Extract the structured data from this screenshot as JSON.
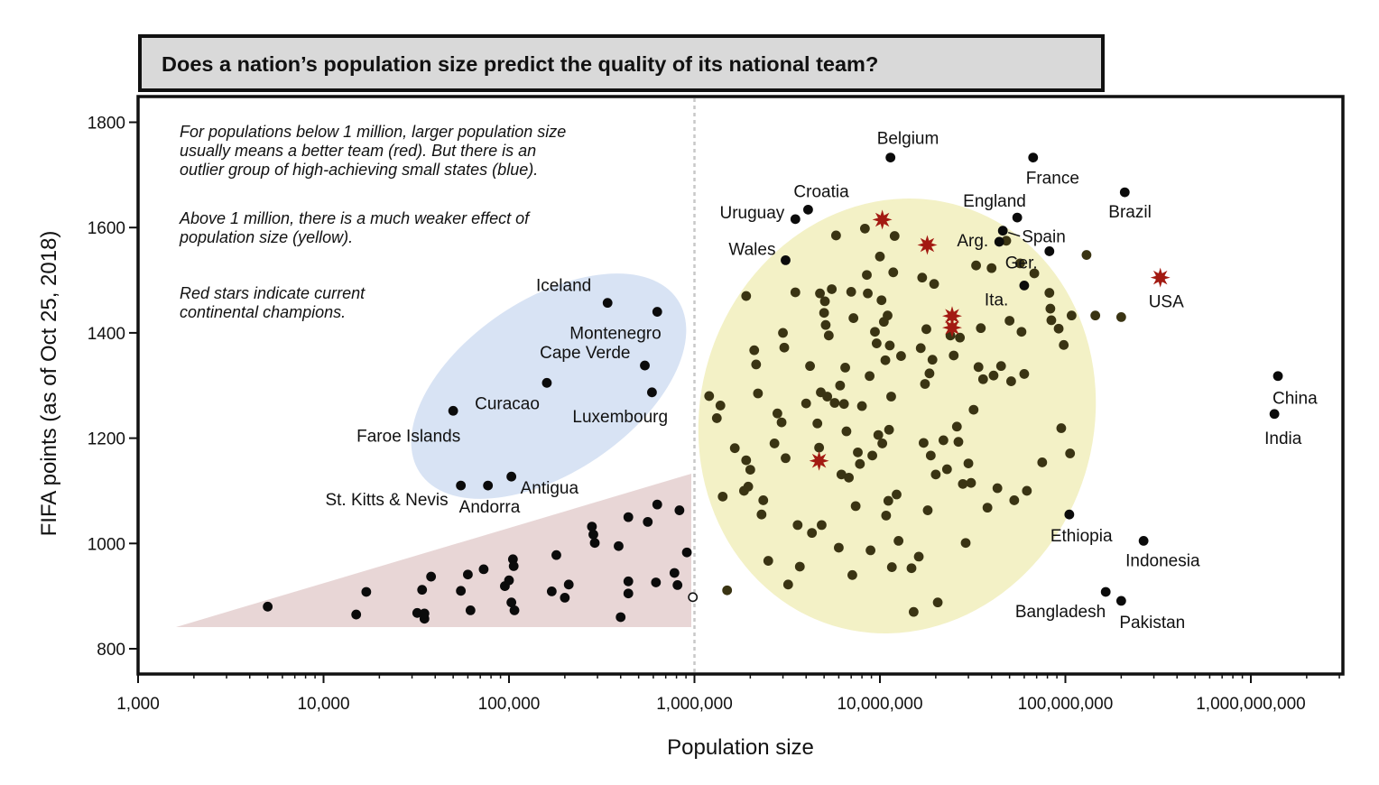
{
  "title": "Does a nation’s population size predict the quality of its national team?",
  "annotations": [
    "For populations below 1 million, larger population size\nusually means a better team (red). But there is an\noutlier group of high-achieving small states (blue).",
    "Above 1 million, there is a much weaker effect of\npopulation size (yellow).",
    "Red stars indicate current\ncontinental champions."
  ],
  "colors": {
    "blue_group": "#d8e3f4",
    "yellow_group": "#f3f1c6",
    "red_group": "#e8d6d6",
    "dot_dark": "#0b0b0b",
    "dot_olive": "#3a3413",
    "star": "#a31a12",
    "divider": "#c8c8c8"
  },
  "chart_data": {
    "type": "scatter",
    "title": "Does a nation’s population size predict the quality of its national team?",
    "xlabel": "Population size",
    "ylabel": "FIFA points (as of Oct 25, 2018)",
    "x_scale": "log",
    "xlim": [
      1000,
      3000000000
    ],
    "ylim": [
      750,
      1850
    ],
    "x_ticks": [
      1000,
      10000,
      100000,
      1000000,
      10000000,
      100000000,
      1000000000
    ],
    "x_tick_labels": [
      "1,000",
      "10,000",
      "100,000",
      "1,000,000",
      "10,000,000",
      "100,000,000",
      "1,000,000,000"
    ],
    "y_ticks": [
      800,
      1000,
      1200,
      1400,
      1600,
      1800
    ],
    "y_tick_labels": [
      "800",
      "1000",
      "1200",
      "1400",
      "1600",
      "1800"
    ],
    "grid": false,
    "divider_x": 1000000,
    "labeled_points": [
      {
        "label": "Iceland",
        "x": 340000,
        "y": 1457
      },
      {
        "label": "Montenegro",
        "x": 630000,
        "y": 1440
      },
      {
        "label": "Cape Verde",
        "x": 540000,
        "y": 1338
      },
      {
        "label": "Curacao",
        "x": 160000,
        "y": 1305
      },
      {
        "label": "Luxembourg",
        "x": 590000,
        "y": 1287
      },
      {
        "label": "Faroe Islands",
        "x": 50000,
        "y": 1252
      },
      {
        "label": "Antigua",
        "x": 103000,
        "y": 1127
      },
      {
        "label": "St. Kitts & Nevis",
        "x": 55000,
        "y": 1110
      },
      {
        "label": "Andorra",
        "x": 77000,
        "y": 1110
      },
      {
        "label": "Belgium",
        "x": 11400000,
        "y": 1733
      },
      {
        "label": "France",
        "x": 67000000,
        "y": 1733
      },
      {
        "label": "Brazil",
        "x": 209000000,
        "y": 1667
      },
      {
        "label": "Croatia",
        "x": 4100000,
        "y": 1634
      },
      {
        "label": "Uruguay",
        "x": 3500000,
        "y": 1616
      },
      {
        "label": "England",
        "x": 55000000,
        "y": 1619
      },
      {
        "label": "Spain",
        "x": 46000000,
        "y": 1594
      },
      {
        "label": "Arg.",
        "x": 44000000,
        "y": 1573
      },
      {
        "label": "Wales",
        "x": 3100000,
        "y": 1538
      },
      {
        "label": "Ger.",
        "x": 82000000,
        "y": 1555
      },
      {
        "label": "Ita.",
        "x": 60000000,
        "y": 1490
      },
      {
        "label": "USA",
        "x": 325000000,
        "y": 1505
      },
      {
        "label": "China",
        "x": 1400000000,
        "y": 1318
      },
      {
        "label": "India",
        "x": 1340000000,
        "y": 1246
      },
      {
        "label": "Ethiopia",
        "x": 105000000,
        "y": 1055
      },
      {
        "label": "Indonesia",
        "x": 264000000,
        "y": 1005
      },
      {
        "label": "Bangladesh",
        "x": 165000000,
        "y": 908
      },
      {
        "label": "Pakistan",
        "x": 200000000,
        "y": 891
      }
    ],
    "champions": [
      {
        "x": 10300000,
        "y": 1615
      },
      {
        "x": 18000000,
        "y": 1567
      },
      {
        "x": 24500000,
        "y": 1432
      },
      {
        "x": 24500000,
        "y": 1410
      },
      {
        "x": 325000000,
        "y": 1505
      },
      {
        "x": 4700000,
        "y": 1157
      }
    ],
    "small_states": [
      {
        "x": 5000,
        "y": 880
      },
      {
        "x": 15000,
        "y": 865
      },
      {
        "x": 17000,
        "y": 908
      },
      {
        "x": 32000,
        "y": 868
      },
      {
        "x": 34000,
        "y": 912
      },
      {
        "x": 35000,
        "y": 857
      },
      {
        "x": 35000,
        "y": 867
      },
      {
        "x": 38000,
        "y": 937
      },
      {
        "x": 55000,
        "y": 910
      },
      {
        "x": 60000,
        "y": 941
      },
      {
        "x": 62000,
        "y": 873
      },
      {
        "x": 73000,
        "y": 951
      },
      {
        "x": 95000,
        "y": 919
      },
      {
        "x": 100000,
        "y": 930
      },
      {
        "x": 103000,
        "y": 888
      },
      {
        "x": 105000,
        "y": 970
      },
      {
        "x": 106000,
        "y": 957
      },
      {
        "x": 107000,
        "y": 873
      },
      {
        "x": 170000,
        "y": 909
      },
      {
        "x": 180000,
        "y": 978
      },
      {
        "x": 200000,
        "y": 897
      },
      {
        "x": 210000,
        "y": 922
      },
      {
        "x": 280000,
        "y": 1032
      },
      {
        "x": 285000,
        "y": 1017
      },
      {
        "x": 290000,
        "y": 1001
      },
      {
        "x": 390000,
        "y": 995
      },
      {
        "x": 400000,
        "y": 860
      },
      {
        "x": 440000,
        "y": 1050
      },
      {
        "x": 440000,
        "y": 928
      },
      {
        "x": 440000,
        "y": 905
      },
      {
        "x": 560000,
        "y": 1041
      },
      {
        "x": 620000,
        "y": 926
      },
      {
        "x": 630000,
        "y": 1074
      },
      {
        "x": 780000,
        "y": 944
      },
      {
        "x": 810000,
        "y": 921
      },
      {
        "x": 830000,
        "y": 1063
      },
      {
        "x": 910000,
        "y": 983
      }
    ],
    "open_points": [
      {
        "x": 980000,
        "y": 898
      }
    ],
    "large_states": [
      {
        "x": 1200000,
        "y": 1280
      },
      {
        "x": 1320000,
        "y": 1238
      },
      {
        "x": 1380000,
        "y": 1262
      },
      {
        "x": 1420000,
        "y": 1089
      },
      {
        "x": 1500000,
        "y": 911
      },
      {
        "x": 1650000,
        "y": 1181
      },
      {
        "x": 1850000,
        "y": 1100
      },
      {
        "x": 1900000,
        "y": 1158
      },
      {
        "x": 1950000,
        "y": 1108
      },
      {
        "x": 2000000,
        "y": 1140
      },
      {
        "x": 2100000,
        "y": 1367
      },
      {
        "x": 2150000,
        "y": 1340
      },
      {
        "x": 2200000,
        "y": 1285
      },
      {
        "x": 2300000,
        "y": 1055
      },
      {
        "x": 2350000,
        "y": 1082
      },
      {
        "x": 2500000,
        "y": 967
      },
      {
        "x": 2700000,
        "y": 1190
      },
      {
        "x": 2800000,
        "y": 1247
      },
      {
        "x": 2950000,
        "y": 1230
      },
      {
        "x": 3000000,
        "y": 1400
      },
      {
        "x": 3050000,
        "y": 1372
      },
      {
        "x": 3100000,
        "y": 1162
      },
      {
        "x": 3200000,
        "y": 922
      },
      {
        "x": 3500000,
        "y": 1477
      },
      {
        "x": 3600000,
        "y": 1035
      },
      {
        "x": 3700000,
        "y": 956
      },
      {
        "x": 4000000,
        "y": 1266
      },
      {
        "x": 4200000,
        "y": 1337
      },
      {
        "x": 4300000,
        "y": 1020
      },
      {
        "x": 4600000,
        "y": 1228
      },
      {
        "x": 4700000,
        "y": 1182
      },
      {
        "x": 4750000,
        "y": 1475
      },
      {
        "x": 4800000,
        "y": 1287
      },
      {
        "x": 4850000,
        "y": 1035
      },
      {
        "x": 5000000,
        "y": 1438
      },
      {
        "x": 5050000,
        "y": 1460
      },
      {
        "x": 5100000,
        "y": 1415
      },
      {
        "x": 5200000,
        "y": 1279
      },
      {
        "x": 5300000,
        "y": 1395
      },
      {
        "x": 5500000,
        "y": 1483
      },
      {
        "x": 5700000,
        "y": 1267
      },
      {
        "x": 5800000,
        "y": 1585
      },
      {
        "x": 6000000,
        "y": 992
      },
      {
        "x": 6100000,
        "y": 1300
      },
      {
        "x": 6200000,
        "y": 1131
      },
      {
        "x": 6400000,
        "y": 1265
      },
      {
        "x": 6500000,
        "y": 1334
      },
      {
        "x": 6600000,
        "y": 1213
      },
      {
        "x": 6800000,
        "y": 1125
      },
      {
        "x": 7000000,
        "y": 1478
      },
      {
        "x": 7100000,
        "y": 940
      },
      {
        "x": 7200000,
        "y": 1428
      },
      {
        "x": 7400000,
        "y": 1071
      },
      {
        "x": 7600000,
        "y": 1173
      },
      {
        "x": 7800000,
        "y": 1151
      },
      {
        "x": 8000000,
        "y": 1261
      },
      {
        "x": 8300000,
        "y": 1598
      },
      {
        "x": 8500000,
        "y": 1510
      },
      {
        "x": 8600000,
        "y": 1475
      },
      {
        "x": 8800000,
        "y": 1318
      },
      {
        "x": 8900000,
        "y": 987
      },
      {
        "x": 9100000,
        "y": 1167
      },
      {
        "x": 9400000,
        "y": 1402
      },
      {
        "x": 9600000,
        "y": 1380
      },
      {
        "x": 9800000,
        "y": 1206
      },
      {
        "x": 10000000,
        "y": 1545
      },
      {
        "x": 10200000,
        "y": 1462
      },
      {
        "x": 10300000,
        "y": 1190
      },
      {
        "x": 10500000,
        "y": 1421
      },
      {
        "x": 10700000,
        "y": 1348
      },
      {
        "x": 10800000,
        "y": 1053
      },
      {
        "x": 11000000,
        "y": 1433
      },
      {
        "x": 11100000,
        "y": 1081
      },
      {
        "x": 11200000,
        "y": 1216
      },
      {
        "x": 11300000,
        "y": 1376
      },
      {
        "x": 11500000,
        "y": 1279
      },
      {
        "x": 11600000,
        "y": 955
      },
      {
        "x": 11800000,
        "y": 1515
      },
      {
        "x": 12000000,
        "y": 1584
      },
      {
        "x": 12300000,
        "y": 1093
      },
      {
        "x": 12600000,
        "y": 1005
      },
      {
        "x": 13000000,
        "y": 1356
      },
      {
        "x": 14800000,
        "y": 953
      },
      {
        "x": 15200000,
        "y": 870
      },
      {
        "x": 16200000,
        "y": 975
      },
      {
        "x": 16600000,
        "y": 1371
      },
      {
        "x": 16900000,
        "y": 1505
      },
      {
        "x": 17200000,
        "y": 1191
      },
      {
        "x": 17500000,
        "y": 1303
      },
      {
        "x": 17800000,
        "y": 1407
      },
      {
        "x": 18100000,
        "y": 1063
      },
      {
        "x": 18500000,
        "y": 1323
      },
      {
        "x": 18800000,
        "y": 1167
      },
      {
        "x": 19200000,
        "y": 1349
      },
      {
        "x": 19600000,
        "y": 1493
      },
      {
        "x": 20000000,
        "y": 1131
      },
      {
        "x": 20500000,
        "y": 888
      },
      {
        "x": 22000000,
        "y": 1196
      },
      {
        "x": 23000000,
        "y": 1141
      },
      {
        "x": 24000000,
        "y": 1395
      },
      {
        "x": 25000000,
        "y": 1357
      },
      {
        "x": 26000000,
        "y": 1222
      },
      {
        "x": 26500000,
        "y": 1193
      },
      {
        "x": 27000000,
        "y": 1391
      },
      {
        "x": 28000000,
        "y": 1113
      },
      {
        "x": 29000000,
        "y": 1001
      },
      {
        "x": 30000000,
        "y": 1152
      },
      {
        "x": 31000000,
        "y": 1115
      },
      {
        "x": 32000000,
        "y": 1254
      },
      {
        "x": 33000000,
        "y": 1528
      },
      {
        "x": 34000000,
        "y": 1335
      },
      {
        "x": 35000000,
        "y": 1409
      },
      {
        "x": 36000000,
        "y": 1312
      },
      {
        "x": 38000000,
        "y": 1068
      },
      {
        "x": 40000000,
        "y": 1523
      },
      {
        "x": 41000000,
        "y": 1319
      },
      {
        "x": 43000000,
        "y": 1105
      },
      {
        "x": 45000000,
        "y": 1337
      },
      {
        "x": 48000000,
        "y": 1575
      },
      {
        "x": 50000000,
        "y": 1423
      },
      {
        "x": 51000000,
        "y": 1308
      },
      {
        "x": 53000000,
        "y": 1082
      },
      {
        "x": 57000000,
        "y": 1532
      },
      {
        "x": 58000000,
        "y": 1402
      },
      {
        "x": 60000000,
        "y": 1322
      },
      {
        "x": 62000000,
        "y": 1100
      },
      {
        "x": 68000000,
        "y": 1513
      },
      {
        "x": 75000000,
        "y": 1154
      },
      {
        "x": 82000000,
        "y": 1476
      },
      {
        "x": 83000000,
        "y": 1446
      },
      {
        "x": 84000000,
        "y": 1424
      },
      {
        "x": 92000000,
        "y": 1408
      },
      {
        "x": 95000000,
        "y": 1219
      },
      {
        "x": 98000000,
        "y": 1377
      },
      {
        "x": 106000000,
        "y": 1171
      },
      {
        "x": 108000000,
        "y": 1433
      },
      {
        "x": 130000000,
        "y": 1548
      },
      {
        "x": 145000000,
        "y": 1433
      },
      {
        "x": 200000000,
        "y": 1430
      },
      {
        "x": 1900000,
        "y": 1470
      }
    ]
  }
}
